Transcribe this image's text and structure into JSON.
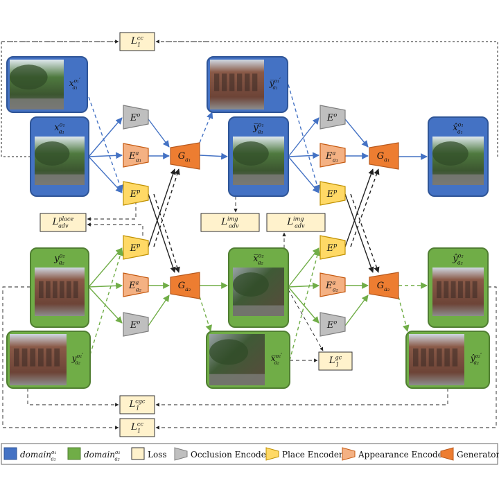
{
  "colors": {
    "blue_domain": "#4472c4",
    "blue_border": "#2f5597",
    "green_domain": "#70ad47",
    "green_border": "#507e32",
    "loss_fill": "#fff2cc",
    "occlusion": "#bfbfbf",
    "place": "#ffd966",
    "appearance": "#f4b183",
    "generator": "#ed7d31",
    "blue_arrow": "#4472c4",
    "green_arrow": "#70ad47"
  },
  "domains": {
    "a1_main": {
      "base": "x",
      "sup": "o₁",
      "sub": "a₁",
      "prime": ""
    },
    "a1_prime": {
      "base": "x",
      "sup": "o₁",
      "sub": "a₁",
      "prime": "′"
    },
    "a2_main": {
      "base": "y",
      "sup": "o₂",
      "sub": "a₂",
      "prime": ""
    },
    "a2_prime": {
      "base": "y",
      "sup": "o₂",
      "sub": "a₂",
      "prime": "′"
    },
    "ybar_a1": {
      "base": "y̅",
      "sup": "o₁",
      "sub": "a₁",
      "prime": ""
    },
    "ybar_a1_prime": {
      "base": "y̅",
      "sup": "o₁",
      "sub": "a₁",
      "prime": "′"
    },
    "xbar_a2": {
      "base": "x̅",
      "sup": "o₂",
      "sub": "a₂",
      "prime": ""
    },
    "xbar_a2_prime": {
      "base": "x̅",
      "sup": "o₂",
      "sub": "a₂",
      "prime": "′"
    },
    "xhat_a1": {
      "base": "x̂",
      "sup": "o₁",
      "sub": "a₁",
      "prime": ""
    },
    "yhat_a2": {
      "base": "ŷ",
      "sup": "o₂",
      "sub": "a₂",
      "prime": ""
    },
    "yhat_a2_prime": {
      "base": "ŷ",
      "sup": "o₂",
      "sub": "a₂",
      "prime": "′"
    }
  },
  "encoders": {
    "occlusion": {
      "base": "E",
      "sup": "o",
      "sub": ""
    },
    "place": {
      "base": "E",
      "sup": "p",
      "sub": ""
    },
    "appearance_a1": {
      "base": "E",
      "sup": "a",
      "sub": "a₁"
    },
    "appearance_a2": {
      "base": "E",
      "sup": "a",
      "sub": "a₂"
    }
  },
  "generators": {
    "g_a1": {
      "base": "G",
      "sub": "a₁"
    },
    "g_a2": {
      "base": "G",
      "sub": "a₂"
    }
  },
  "losses": {
    "l1_cc": {
      "base": "L",
      "sup": "cc",
      "sub": "1"
    },
    "ladv_place": {
      "base": "L",
      "sup": "place",
      "sub": "adv"
    },
    "ladv_img": {
      "base": "L",
      "sup": "img",
      "sub": "adv"
    },
    "l1_gc": {
      "base": "L",
      "sup": "gc",
      "sub": "1"
    },
    "l1_cgc": {
      "base": "L",
      "sup": "cgc",
      "sub": "1"
    }
  },
  "legend": {
    "domain_a1": {
      "base": "domain",
      "sup": "o₁",
      "sub": "a₁"
    },
    "domain_a2": {
      "base": "domain",
      "sup": "o₂",
      "sub": "a₂"
    },
    "loss": "Loss",
    "occlusion": "Occlusion Encoder",
    "place": "Place Encoder",
    "appearance": "Appearance Encoder",
    "generator": "Generator"
  }
}
